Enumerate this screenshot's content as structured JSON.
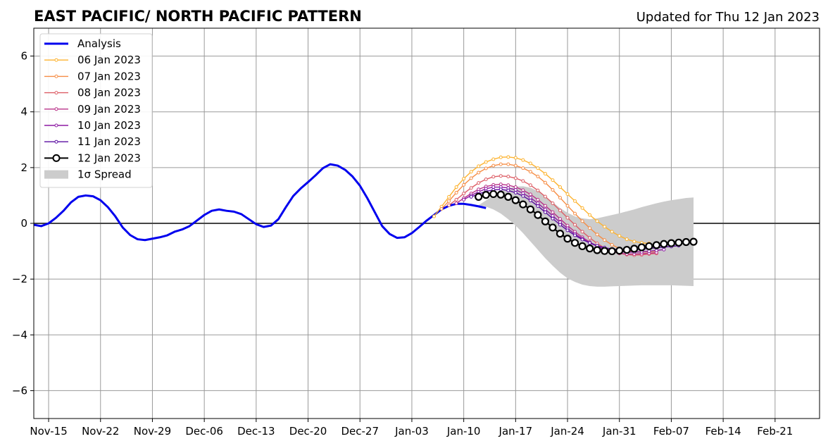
{
  "chart_data": {
    "type": "line",
    "title": "EAST PACIFIC/ NORTH PACIFIC PATTERN",
    "subtitle": "Updated for Thu 12 Jan 2023",
    "xlabel": "",
    "ylabel": "",
    "x_start": "2022-11-13",
    "x_end": "2023-02-27",
    "xlim_days": [
      0,
      106
    ],
    "ylim": [
      -7,
      7
    ],
    "yticks": [
      -6,
      -4,
      -2,
      0,
      2,
      4,
      6
    ],
    "ytick_labels": [
      "−6",
      "−4",
      "−2",
      "0",
      "2",
      "4",
      "6"
    ],
    "xtick_labels": [
      "Nov-15",
      "Nov-22",
      "Nov-29",
      "Dec-06",
      "Dec-13",
      "Dec-20",
      "Dec-27",
      "Jan-03",
      "Jan-10",
      "Jan-17",
      "Jan-24",
      "Jan-31",
      "Feb-07",
      "Feb-14",
      "Feb-21"
    ],
    "grid": true,
    "legend_position": "top-left",
    "analysis": {
      "name": "Analysis",
      "color": "#0000ee",
      "start_date": "2022-11-13",
      "values": [
        -0.05,
        -0.1,
        0.0,
        0.2,
        0.45,
        0.75,
        0.95,
        1.0,
        0.97,
        0.83,
        0.58,
        0.25,
        -0.15,
        -0.42,
        -0.57,
        -0.6,
        -0.55,
        -0.5,
        -0.43,
        -0.3,
        -0.22,
        -0.1,
        0.1,
        0.3,
        0.45,
        0.5,
        0.45,
        0.42,
        0.33,
        0.15,
        -0.03,
        -0.13,
        -0.08,
        0.15,
        0.58,
        0.98,
        1.25,
        1.48,
        1.72,
        1.98,
        2.12,
        2.07,
        1.92,
        1.68,
        1.35,
        0.9,
        0.4,
        -0.1,
        -0.38,
        -0.52,
        -0.5,
        -0.35,
        -0.13,
        0.1,
        0.3,
        0.5,
        0.63,
        0.7,
        0.7,
        0.66,
        0.61,
        0.55
      ]
    },
    "forecasts": [
      {
        "name": "06 Jan 2023",
        "color": "#fdb32f",
        "start_date": "2023-01-06",
        "values": [
          0.25,
          0.6,
          0.95,
          1.3,
          1.6,
          1.85,
          2.05,
          2.2,
          2.3,
          2.37,
          2.38,
          2.35,
          2.27,
          2.15,
          1.98,
          1.78,
          1.55,
          1.3,
          1.05,
          0.8,
          0.55,
          0.3,
          0.08,
          -0.12,
          -0.3,
          -0.45,
          -0.57,
          -0.65,
          -0.7,
          -0.72
        ]
      },
      {
        "name": "07 Jan 2023",
        "color": "#f68d45",
        "start_date": "2023-01-07",
        "values": [
          0.52,
          0.8,
          1.1,
          1.38,
          1.62,
          1.82,
          1.97,
          2.07,
          2.12,
          2.12,
          2.07,
          1.98,
          1.85,
          1.68,
          1.46,
          1.2,
          0.92,
          0.63,
          0.35,
          0.08,
          -0.17,
          -0.4,
          -0.6,
          -0.77,
          -0.9,
          -0.98,
          -1.02,
          -1.03,
          -1.02,
          -1.0
        ]
      },
      {
        "name": "08 Jan 2023",
        "color": "#dd5e66",
        "start_date": "2023-01-08",
        "values": [
          0.65,
          0.85,
          1.07,
          1.27,
          1.45,
          1.58,
          1.67,
          1.7,
          1.68,
          1.62,
          1.52,
          1.37,
          1.18,
          0.96,
          0.72,
          0.46,
          0.2,
          -0.05,
          -0.3,
          -0.52,
          -0.72,
          -0.88,
          -1.0,
          -1.08,
          -1.12,
          -1.14,
          -1.13,
          -1.1,
          -1.08
        ]
      },
      {
        "name": "09 Jan 2023",
        "color": "#b93389",
        "start_date": "2023-01-09",
        "values": [
          0.72,
          0.9,
          1.07,
          1.22,
          1.32,
          1.38,
          1.4,
          1.37,
          1.3,
          1.19,
          1.04,
          0.85,
          0.63,
          0.4,
          0.16,
          -0.08,
          -0.3,
          -0.5,
          -0.67,
          -0.82,
          -0.94,
          -1.02,
          -1.07,
          -1.1,
          -1.1,
          -1.09,
          -1.07,
          -1.05
        ]
      },
      {
        "name": "10 Jan 2023",
        "color": "#8d1aa3",
        "start_date": "2023-01-10",
        "values": [
          0.85,
          1.0,
          1.13,
          1.24,
          1.3,
          1.3,
          1.27,
          1.2,
          1.08,
          0.92,
          0.72,
          0.5,
          0.27,
          0.04,
          -0.18,
          -0.38,
          -0.55,
          -0.7,
          -0.82,
          -0.92,
          -0.98,
          -1.02,
          -1.03,
          -1.03,
          -1.02,
          -1.0,
          -0.97,
          -0.94
        ]
      },
      {
        "name": "11 Jan 2023",
        "color": "#5a0da1",
        "start_date": "2023-01-11",
        "values": [
          0.95,
          1.05,
          1.15,
          1.2,
          1.22,
          1.18,
          1.1,
          0.98,
          0.82,
          0.62,
          0.4,
          0.17,
          -0.05,
          -0.25,
          -0.43,
          -0.58,
          -0.7,
          -0.8,
          -0.87,
          -0.92,
          -0.94,
          -0.95,
          -0.94,
          -0.92,
          -0.9,
          -0.88,
          -0.85,
          -0.83,
          -0.8
        ]
      },
      {
        "name": "12 Jan 2023",
        "color": "#000000",
        "start_date": "2023-01-12",
        "values": [
          0.95,
          1.02,
          1.05,
          1.03,
          0.95,
          0.83,
          0.68,
          0.5,
          0.3,
          0.07,
          -0.15,
          -0.37,
          -0.55,
          -0.7,
          -0.82,
          -0.9,
          -0.96,
          -0.99,
          -1.0,
          -0.98,
          -0.95,
          -0.91,
          -0.86,
          -0.82,
          -0.78,
          -0.74,
          -0.71,
          -0.69,
          -0.67,
          -0.66
        ]
      }
    ],
    "spread": {
      "name": "1σ Spread",
      "color": "#cccccc",
      "start_date": "2023-01-12",
      "upper": [
        0.65,
        0.82,
        1.0,
        1.15,
        1.25,
        1.32,
        1.33,
        1.28,
        1.15,
        0.97,
        0.76,
        0.55,
        0.38,
        0.25,
        0.18,
        0.15,
        0.18,
        0.24,
        0.3,
        0.36,
        0.43,
        0.5,
        0.58,
        0.65,
        0.72,
        0.78,
        0.83,
        0.87,
        0.91,
        0.93
      ],
      "lower": [
        0.65,
        0.6,
        0.5,
        0.35,
        0.15,
        -0.08,
        -0.35,
        -0.65,
        -0.95,
        -1.25,
        -1.52,
        -1.77,
        -1.97,
        -2.1,
        -2.2,
        -2.25,
        -2.27,
        -2.27,
        -2.26,
        -2.25,
        -2.24,
        -2.23,
        -2.22,
        -2.22,
        -2.22,
        -2.22,
        -2.22,
        -2.23,
        -2.24,
        -2.25
      ]
    }
  }
}
